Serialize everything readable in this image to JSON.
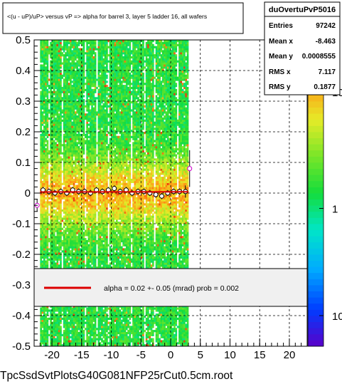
{
  "title": "<(u - uP)/uP> versus   vP => alpha for barrel 3, layer 5 ladder 16, all wafers",
  "footer": "TpcSsdSvtPlotsG40G081NFP25rCut0.5cm.root",
  "stats": {
    "name": "duOvertuPvP5016",
    "rows": [
      {
        "label": "Entries",
        "value": "97242"
      },
      {
        "label": "Mean x",
        "value": "-8.463"
      },
      {
        "label": "Mean y",
        "value": "0.0008555"
      },
      {
        "label": "RMS x",
        "value": "7.117"
      },
      {
        "label": "RMS y",
        "value": "0.1877"
      }
    ]
  },
  "legend": {
    "text": "alpha =     0.02 +-  0.05 (mrad) prob = 0.002",
    "line_color": "#dd0000"
  },
  "colors": {
    "frame": "#000000",
    "grid": "#000000",
    "legend_fill": "#f0f0f0",
    "profile_marker": "#cc00cc"
  },
  "chart_data": {
    "type": "heatmap",
    "title": "<(u - uP)/uP> versus   vP => alpha for barrel 3, layer 5 ladder 16, all wafers",
    "xlim": [
      -23,
      23
    ],
    "ylim": [
      -0.5,
      0.5
    ],
    "x_ticks": [
      {
        "v": -20,
        "label": "-20"
      },
      {
        "v": -15,
        "label": "-15"
      },
      {
        "v": -10,
        "label": "-10"
      },
      {
        "v": -5,
        "label": "-5"
      },
      {
        "v": 0,
        "label": "0"
      },
      {
        "v": 5,
        "label": "5"
      },
      {
        "v": 10,
        "label": "10"
      },
      {
        "v": 15,
        "label": "15"
      },
      {
        "v": 20,
        "label": "20"
      }
    ],
    "y_ticks": [
      {
        "v": 0.5,
        "label": "0.5"
      },
      {
        "v": 0.4,
        "label": "0.4"
      },
      {
        "v": 0.3,
        "label": "0.3"
      },
      {
        "v": 0.2,
        "label": "0.2"
      },
      {
        "v": 0.1,
        "label": "0.1"
      },
      {
        "v": 0,
        "label": "0"
      },
      {
        "v": -0.1,
        "label": "-0.1"
      },
      {
        "v": -0.2,
        "label": "-0.2"
      },
      {
        "v": -0.3,
        "label": "-0.3"
      },
      {
        "v": -0.4,
        "label": "-0.4"
      },
      {
        "v": -0.5,
        "label": "-0.5"
      }
    ],
    "data_x_range": [
      -22,
      3
    ],
    "grid": true,
    "palette_labels": [
      {
        "level": 0.1,
        "label": "10"
      },
      {
        "level": 0.45,
        "label": "1"
      },
      {
        "level": 0.83,
        "label": "10"
      }
    ],
    "profile": {
      "x": [
        -22.5,
        -21.5,
        -20.5,
        -19.5,
        -18.5,
        -17.5,
        -16.5,
        -15.5,
        -14.5,
        -13.5,
        -12.5,
        -11.5,
        -10.5,
        -9.5,
        -8.5,
        -7.5,
        -6.5,
        -5.5,
        -4.5,
        -3.5,
        -2.5,
        -1.5,
        -0.5,
        0.5,
        1.5,
        2.5,
        3.2
      ],
      "y": [
        -0.04,
        0.01,
        0.005,
        0.0,
        0.005,
        0.0,
        0.01,
        0.005,
        0.005,
        0.0,
        0.01,
        0.005,
        0.01,
        0.015,
        0.005,
        0.01,
        0.0,
        0.005,
        0.005,
        0.0,
        -0.005,
        -0.01,
        0.0,
        0.005,
        0.005,
        0.005,
        0.08
      ],
      "yerr": [
        0.02,
        0.01,
        0.01,
        0.01,
        0.01,
        0.01,
        0.01,
        0.01,
        0.01,
        0.01,
        0.01,
        0.01,
        0.01,
        0.01,
        0.01,
        0.01,
        0.01,
        0.01,
        0.01,
        0.01,
        0.01,
        0.01,
        0.01,
        0.01,
        0.01,
        0.02,
        0.06
      ]
    },
    "fit": {
      "slope": 2e-05,
      "intercept": 0.004
    }
  }
}
